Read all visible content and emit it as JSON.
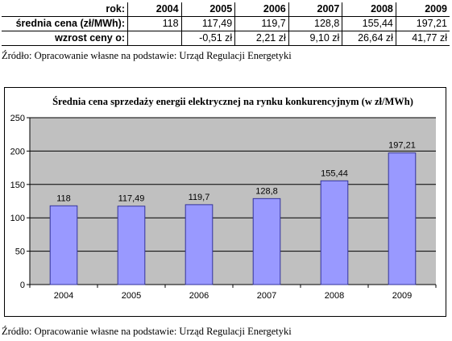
{
  "table": {
    "header_label": "rok:",
    "years": [
      "2004",
      "2005",
      "2006",
      "2007",
      "2008",
      "2009"
    ],
    "price_label": "średnia cena (zł/MWh):",
    "prices": [
      "118",
      "117,49",
      "119,7",
      "128,8",
      "155,44",
      "197,21"
    ],
    "growth_label": "wzrost ceny o:",
    "growth": [
      "",
      "-0,51 zł",
      "2,21 zł",
      "9,10 zł",
      "26,64 zł",
      "41,77 zł"
    ]
  },
  "source_top": "Źródło: Opracowanie własne na podstawie: Urząd Regulacji Energetyki",
  "source_bottom": "Źródło: Opracowanie własne na podstawie: Urząd Regulacji Energetyki",
  "colors": {
    "bar_fill": "#9999ff",
    "bar_stroke": "#333399",
    "plot_bg": "#c0c0c0"
  },
  "chart_data": {
    "type": "bar",
    "title": "Średnia cena sprzedaży energii elektrycznej na rynku konkurencyjnym (w zł/MWh)",
    "categories": [
      "2004",
      "2005",
      "2006",
      "2007",
      "2008",
      "2009"
    ],
    "values": [
      118,
      117.49,
      119.7,
      128.8,
      155.44,
      197.21
    ],
    "data_labels": [
      "118",
      "117,49",
      "119,7",
      "128,8",
      "155,44",
      "197,21"
    ],
    "ylim": [
      0,
      250
    ],
    "yticks": [
      0,
      50,
      100,
      150,
      200,
      250
    ],
    "grid": true,
    "legend": "none"
  }
}
